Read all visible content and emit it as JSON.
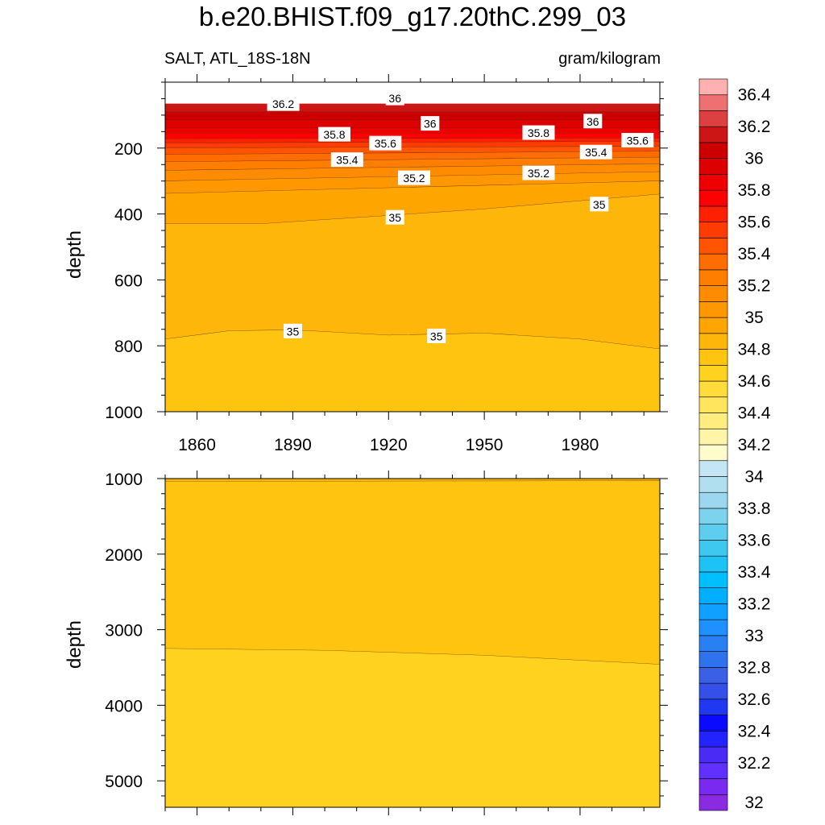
{
  "title": "b.e20.BHIST.f09_g17.20thC.299_03",
  "subtitle_left": "SALT, ATL_18S-18N",
  "subtitle_right": "gram/kilogram",
  "chart_data": [
    {
      "type": "contour",
      "panel": "upper",
      "variable": "SALT",
      "region": "ATL_18S-18N",
      "units": "gram/kilogram",
      "ylabel": "depth",
      "xlabel": "",
      "xlim": [
        1850,
        2005
      ],
      "ylim": [
        1000,
        0
      ],
      "x_ticks": [
        1860,
        1890,
        1920,
        1950,
        1980
      ],
      "y_ticks": [
        200,
        400,
        600,
        800,
        1000
      ],
      "bands": [
        {
          "level_min": 36.2,
          "from": [
            [
              1850,
              65
            ],
            [
              2005,
              65
            ]
          ],
          "to": [
            [
              1850,
              90
            ],
            [
              2005,
              90
            ]
          ]
        },
        {
          "level_min": 36.1,
          "from": [
            [
              1850,
              90
            ],
            [
              2005,
              90
            ]
          ],
          "to": [
            [
              1850,
              115
            ],
            [
              2005,
              115
            ]
          ]
        },
        {
          "level_min": 36.0,
          "from": [
            [
              1850,
              115
            ],
            [
              2005,
              115
            ]
          ],
          "to": [
            [
              1850,
              140
            ],
            [
              2005,
              140
            ]
          ]
        },
        {
          "level_min": 35.9,
          "from": [
            [
              1850,
              140
            ],
            [
              2005,
              140
            ]
          ],
          "to": [
            [
              1850,
              155
            ],
            [
              2005,
              155
            ]
          ]
        },
        {
          "level_min": 35.8,
          "from": [
            [
              1850,
              155
            ],
            [
              2005,
              155
            ]
          ],
          "to": [
            [
              1850,
              172
            ],
            [
              2005,
              170
            ]
          ]
        },
        {
          "level_min": 35.7,
          "from": [
            [
              1850,
              172
            ],
            [
              2005,
              170
            ]
          ],
          "to": [
            [
              1850,
              185
            ],
            [
              2005,
              180
            ]
          ]
        },
        {
          "level_min": 35.6,
          "from": [
            [
              1850,
              185
            ],
            [
              2005,
              180
            ]
          ],
          "to": [
            [
              1850,
              200
            ],
            [
              2005,
              195
            ]
          ]
        },
        {
          "level_min": 35.5,
          "from": [
            [
              1850,
              200
            ],
            [
              2005,
              195
            ]
          ],
          "to": [
            [
              1850,
              220
            ],
            [
              2005,
              210
            ]
          ]
        },
        {
          "level_min": 35.4,
          "from": [
            [
              1850,
              220
            ],
            [
              2005,
              210
            ]
          ],
          "to": [
            [
              1850,
              242
            ],
            [
              2005,
              228
            ]
          ]
        },
        {
          "level_min": 35.3,
          "from": [
            [
              1850,
              242
            ],
            [
              2005,
              228
            ]
          ],
          "to": [
            [
              1850,
              268
            ],
            [
              2005,
              248
            ]
          ]
        },
        {
          "level_min": 35.2,
          "from": [
            [
              1850,
              268
            ],
            [
              2005,
              248
            ]
          ],
          "to": [
            [
              1850,
              300
            ],
            [
              2005,
              272
            ]
          ]
        },
        {
          "level_min": 35.1,
          "from": [
            [
              1850,
              300
            ],
            [
              2005,
              272
            ]
          ],
          "to": [
            [
              1850,
              338
            ],
            [
              2005,
              300
            ]
          ]
        },
        {
          "level_min": 35.0,
          "from": [
            [
              1850,
              338
            ],
            [
              2005,
              300
            ]
          ],
          "to": [
            [
              1850,
              430
            ],
            [
              1880,
              430
            ],
            [
              1920,
              405
            ],
            [
              1950,
              385
            ],
            [
              2005,
              340
            ]
          ]
        },
        {
          "level_min": 34.9,
          "from": [
            [
              1850,
              430
            ],
            [
              1880,
              430
            ],
            [
              1920,
              405
            ],
            [
              1950,
              385
            ],
            [
              2005,
              340
            ]
          ],
          "to": [
            [
              1850,
              780
            ],
            [
              1870,
              755
            ],
            [
              1890,
              752
            ],
            [
              1920,
              768
            ],
            [
              1950,
              762
            ],
            [
              1980,
              780
            ],
            [
              2005,
              810
            ]
          ]
        },
        {
          "level_min": 34.8,
          "from": [
            [
              1850,
              780
            ],
            [
              1870,
              755
            ],
            [
              1890,
              752
            ],
            [
              1920,
              768
            ],
            [
              1950,
              762
            ],
            [
              1980,
              780
            ],
            [
              2005,
              810
            ]
          ],
          "to": [
            [
              1850,
              1000
            ],
            [
              2005,
              1000
            ]
          ]
        }
      ],
      "contour_labels": [
        {
          "text": "36.2",
          "x": 1887,
          "depth": 65
        },
        {
          "text": "36",
          "x": 1922,
          "depth": 48
        },
        {
          "text": "36",
          "x": 1933,
          "depth": 125
        },
        {
          "text": "36",
          "x": 1984,
          "depth": 118
        },
        {
          "text": "35.8",
          "x": 1903,
          "depth": 158
        },
        {
          "text": "35.8",
          "x": 1967,
          "depth": 153
        },
        {
          "text": "35.6",
          "x": 1919,
          "depth": 185
        },
        {
          "text": "35.6",
          "x": 1998,
          "depth": 176
        },
        {
          "text": "35.4",
          "x": 1907,
          "depth": 235
        },
        {
          "text": "35.4",
          "x": 1985,
          "depth": 212
        },
        {
          "text": "35.2",
          "x": 1928,
          "depth": 290
        },
        {
          "text": "35.2",
          "x": 1967,
          "depth": 275
        },
        {
          "text": "35",
          "x": 1922,
          "depth": 410
        },
        {
          "text": "35",
          "x": 1986,
          "depth": 370
        },
        {
          "text": "35",
          "x": 1890,
          "depth": 755
        },
        {
          "text": "35",
          "x": 1935,
          "depth": 770
        }
      ]
    },
    {
      "type": "contour",
      "panel": "lower",
      "variable": "SALT",
      "ylabel": "depth",
      "xlabel": "",
      "xlim": [
        1850,
        2005
      ],
      "ylim": [
        5350,
        1000
      ],
      "x_ticks": [
        1860,
        1890,
        1920,
        1950,
        1980
      ],
      "y_ticks": [
        1000,
        2000,
        3000,
        4000,
        5000
      ],
      "bands": [
        {
          "level_min": 34.9,
          "from": [
            [
              1850,
              1000
            ],
            [
              2005,
              1000
            ]
          ],
          "to": [
            [
              1850,
              1040
            ],
            [
              2005,
              1030
            ]
          ]
        },
        {
          "level_min": 34.8,
          "from": [
            [
              1850,
              1040
            ],
            [
              2005,
              1030
            ]
          ],
          "to": [
            [
              1850,
              3250
            ],
            [
              1900,
              3275
            ],
            [
              1950,
              3340
            ],
            [
              2005,
              3460
            ]
          ]
        },
        {
          "level_min": 34.7,
          "from": [
            [
              1850,
              3250
            ],
            [
              1900,
              3275
            ],
            [
              1950,
              3340
            ],
            [
              2005,
              3460
            ]
          ],
          "to": [
            [
              1850,
              5350
            ],
            [
              2005,
              5350
            ]
          ]
        }
      ]
    },
    {
      "type": "colorbar",
      "levels": [
        32,
        32.1,
        32.2,
        32.3,
        32.4,
        32.5,
        32.6,
        32.7,
        32.8,
        32.9,
        33,
        33.1,
        33.2,
        33.3,
        33.4,
        33.5,
        33.6,
        33.7,
        33.8,
        33.9,
        34,
        34.1,
        34.2,
        34.3,
        34.4,
        34.5,
        34.6,
        34.7,
        34.8,
        34.9,
        35,
        35.1,
        35.2,
        35.3,
        35.4,
        35.5,
        35.6,
        35.7,
        35.8,
        35.9,
        36,
        36.1,
        36.2,
        36.3,
        36.4,
        36.5
      ],
      "tick_labels": [
        "32",
        "32.2",
        "32.4",
        "32.6",
        "32.8",
        "33",
        "33.2",
        "33.4",
        "33.6",
        "33.8",
        "34",
        "34.2",
        "34.4",
        "34.6",
        "34.8",
        "35",
        "35.2",
        "35.4",
        "35.6",
        "35.8",
        "36",
        "36.2",
        "36.4"
      ],
      "colors": [
        "#8a2be2",
        "#7a29f0",
        "#6030ff",
        "#4a2af5",
        "#2323ff",
        "#0a0aff",
        "#2038f0",
        "#3450e8",
        "#3a60e6",
        "#2f72ee",
        "#2880f2",
        "#1e90ff",
        "#10a0ff",
        "#00afff",
        "#00bfff",
        "#1ec3f5",
        "#3ec8f0",
        "#5fcdef",
        "#7dd3ee",
        "#9bd8f0",
        "#b0e0f0",
        "#c4e6f4",
        "#fffccc",
        "#fff5a8",
        "#ffed80",
        "#ffe55e",
        "#ffdb3c",
        "#ffd21f",
        "#ffc410",
        "#ffb60a",
        "#ffa500",
        "#ff9800",
        "#ff8c00",
        "#ff7e00",
        "#ff6c00",
        "#ff5400",
        "#ff3c00",
        "#ff2000",
        "#ff0000",
        "#ee0000",
        "#dd0000",
        "#cc0000",
        "#cc1515",
        "#dd4040",
        "#ee7070",
        "#ffb0b0"
      ]
    }
  ]
}
